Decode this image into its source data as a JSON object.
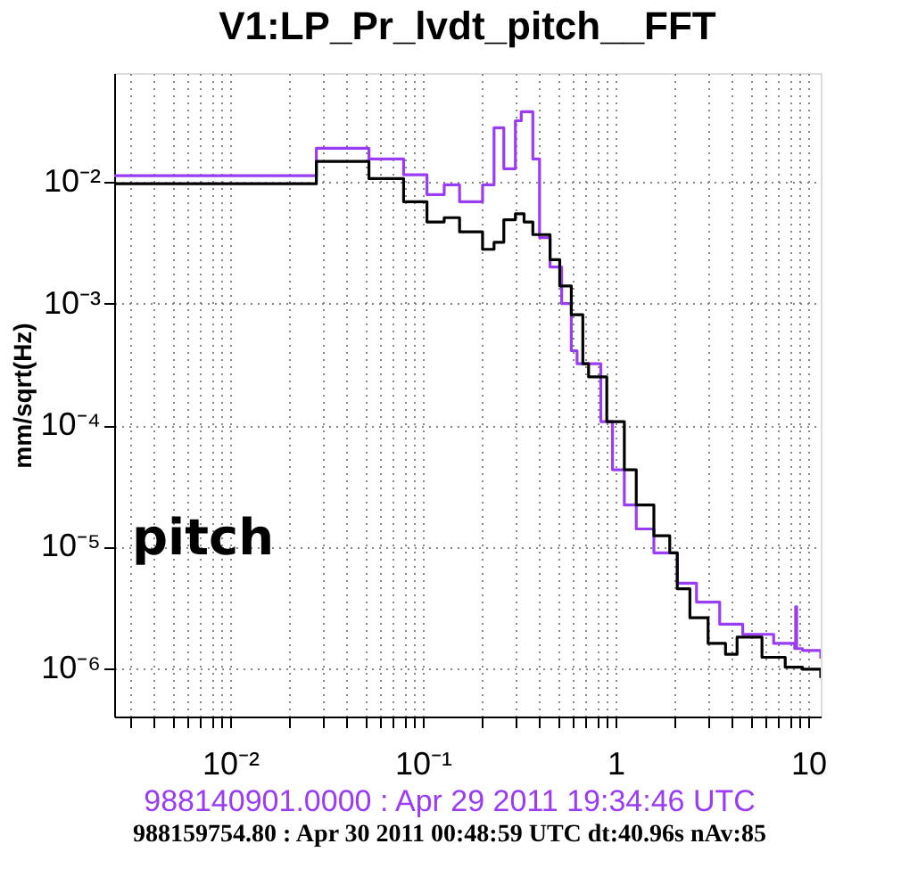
{
  "chart_data": {
    "type": "step",
    "title": "V1:LP_Pr_lvdt_pitch__FFT",
    "ylabel": "mm/sqrt(Hz)",
    "log": "xy",
    "grid": true,
    "line_style": "solid",
    "marker": "none",
    "xlim": [
      0.0025,
      11.6
    ],
    "ylim": [
      4e-07,
      0.079
    ],
    "xticks": [
      {
        "value": 0.003,
        "label": null
      },
      {
        "value": 0.004,
        "label": null
      },
      {
        "value": 0.005,
        "label": null
      },
      {
        "value": 0.006,
        "label": null
      },
      {
        "value": 0.007,
        "label": null
      },
      {
        "value": 0.008,
        "label": null
      },
      {
        "value": 0.009,
        "label": null
      },
      {
        "value": 0.01,
        "label": "10⁻²"
      },
      {
        "value": 0.02,
        "label": null
      },
      {
        "value": 0.03,
        "label": null
      },
      {
        "value": 0.04,
        "label": null
      },
      {
        "value": 0.05,
        "label": null
      },
      {
        "value": 0.06,
        "label": null
      },
      {
        "value": 0.07,
        "label": null
      },
      {
        "value": 0.08,
        "label": null
      },
      {
        "value": 0.09,
        "label": null
      },
      {
        "value": 0.1,
        "label": "10⁻¹"
      },
      {
        "value": 0.2,
        "label": null
      },
      {
        "value": 0.3,
        "label": null
      },
      {
        "value": 0.4,
        "label": null
      },
      {
        "value": 0.5,
        "label": null
      },
      {
        "value": 0.6,
        "label": null
      },
      {
        "value": 0.7,
        "label": null
      },
      {
        "value": 0.8,
        "label": null
      },
      {
        "value": 0.9,
        "label": null
      },
      1,
      {
        "value": 2,
        "label": null
      },
      {
        "value": 3,
        "label": null
      },
      {
        "value": 4,
        "label": null
      },
      {
        "value": 5,
        "label": null
      },
      {
        "value": 6,
        "label": null
      },
      {
        "value": 7,
        "label": null
      },
      {
        "value": 8,
        "label": null
      },
      {
        "value": 9,
        "label": null
      },
      10
    ],
    "yticks": [
      {
        "value": 1e-06,
        "label": "10⁻⁶"
      },
      {
        "value": 1e-05,
        "label": "10⁻⁵"
      },
      {
        "value": 0.0001,
        "label": "10⁻⁴"
      },
      {
        "value": 0.001,
        "label": "10⁻³"
      },
      {
        "value": 0.01,
        "label": "10⁻²"
      }
    ],
    "annotations": [
      "pitch",
      "988140901.0000 : Apr 29 2011 19:34:46 UTC",
      "988159754.80 : Apr 30 2011 00:48:59 UTC dt:40.96s nAv:85"
    ],
    "series": [
      {
        "color": "#9b3cf5",
        "x": [
          0.0025,
          0.028,
          0.0525,
          0.0794,
          0.105,
          0.129,
          0.155,
          0.204,
          0.234,
          0.263,
          0.302,
          0.324,
          0.372,
          0.403,
          0.457,
          0.525,
          0.589,
          0.631,
          0.838,
          0.964,
          1.11,
          1.28,
          1.58,
          2.09,
          2.63,
          3.47,
          4.57,
          6.61,
          8.5,
          8.6,
          8.7,
          9.33,
          11.6
        ],
        "values": [
          0.0113,
          0.019,
          0.0155,
          0.0115,
          0.0079,
          0.0095,
          0.0069,
          0.0095,
          0.028,
          0.0129,
          0.032,
          0.038,
          0.0155,
          0.0035,
          0.002,
          0.001,
          0.00041,
          0.00032,
          0.000107,
          4.3e-05,
          2.2e-05,
          1.4e-05,
          8.9e-06,
          5e-06,
          3.5e-06,
          2.3e-06,
          1.9e-06,
          1.6e-06,
          1.45e-06,
          3.2e-06,
          1.45e-06,
          1.4e-06,
          1.2e-06
        ]
      },
      {
        "color": "#000000",
        "x": [
          0.0025,
          0.028,
          0.0525,
          0.0794,
          0.105,
          0.129,
          0.155,
          0.204,
          0.234,
          0.263,
          0.302,
          0.335,
          0.372,
          0.403,
          0.457,
          0.513,
          0.589,
          0.676,
          0.724,
          0.9,
          1.11,
          1.28,
          1.58,
          1.91,
          2.09,
          2.43,
          3.02,
          3.72,
          4.27,
          5.75,
          7.59,
          9.33,
          11.6
        ],
        "values": [
          0.0097,
          0.0148,
          0.0107,
          0.0069,
          0.0047,
          0.0051,
          0.0039,
          0.0028,
          0.0032,
          0.0049,
          0.0055,
          0.0047,
          0.0037,
          0.0037,
          0.0023,
          0.0014,
          0.00081,
          0.00032,
          0.00025,
          0.000107,
          4.3e-05,
          2.2e-05,
          1.23e-05,
          8.9e-06,
          4.5e-06,
          2.6e-06,
          1.6e-06,
          1.3e-06,
          1.8e-06,
          1.23e-06,
          1.02e-06,
          9.8e-07,
          8.3e-07
        ]
      }
    ]
  }
}
